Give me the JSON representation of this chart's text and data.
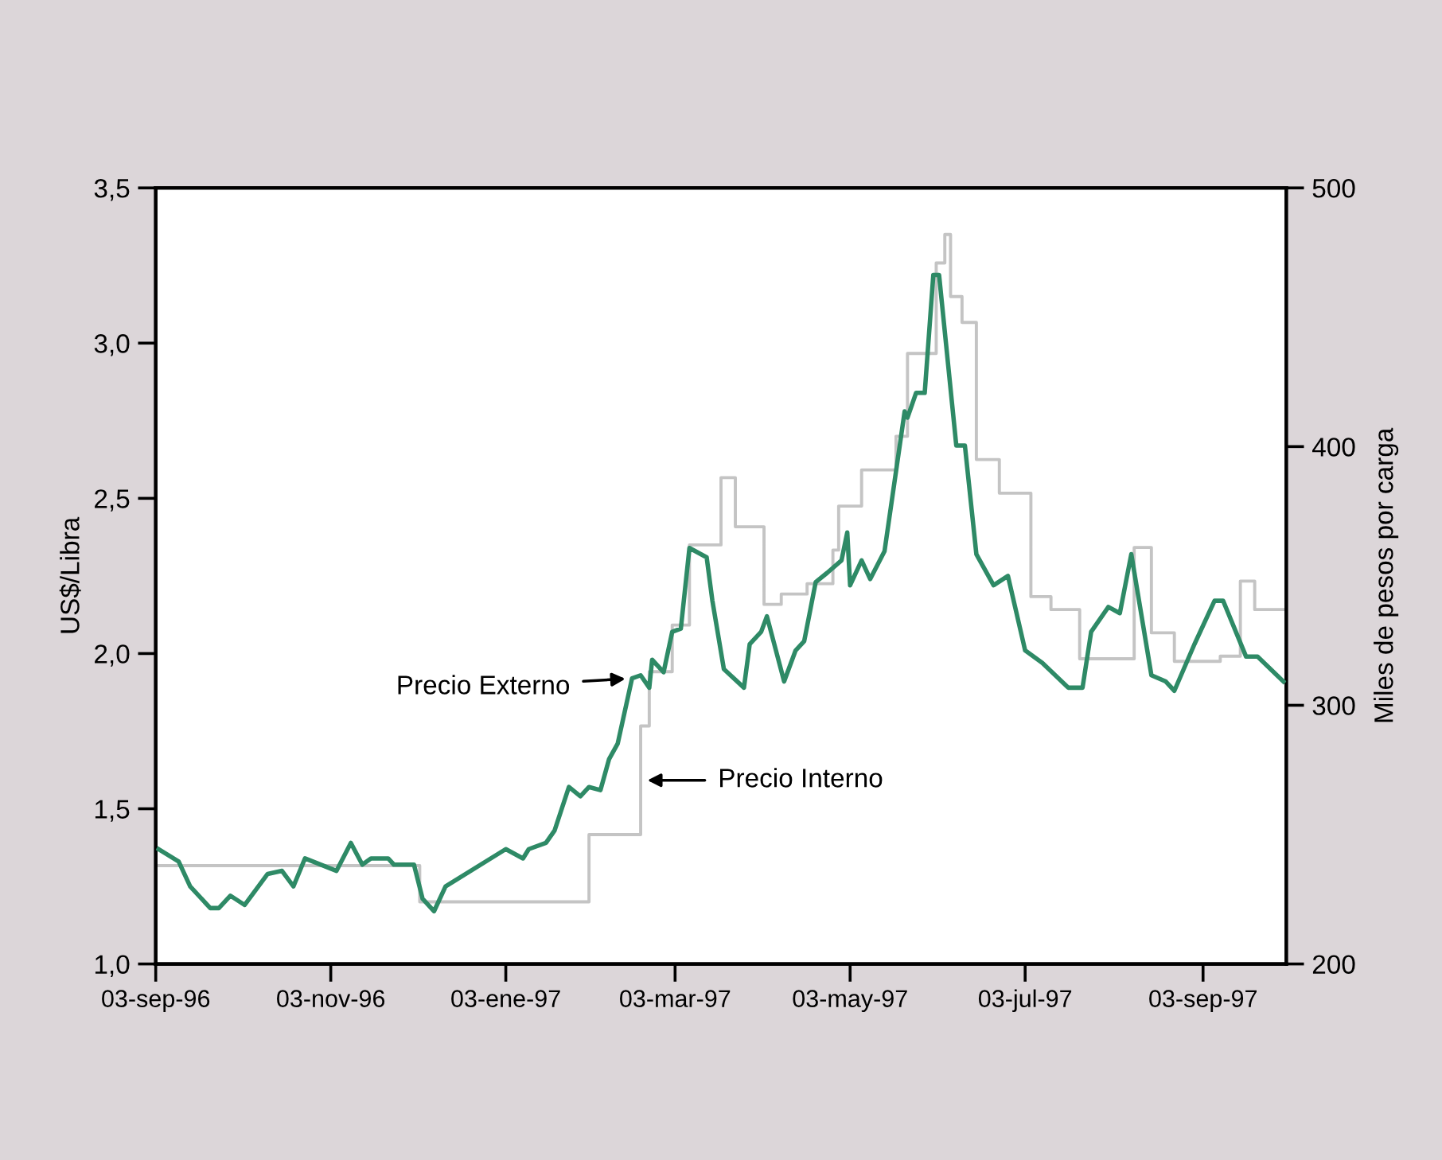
{
  "chart_data": {
    "type": "line",
    "ylabel": "US$/Libra",
    "y2label": "Miles de pesos por carga",
    "xlim": [
      "1996-09-03",
      "1997-10-02"
    ],
    "xticks": [
      {
        "value": "1996-09-03",
        "label": "03-sep-96"
      },
      {
        "value": "1996-11-03",
        "label": "03-nov-96"
      },
      {
        "value": "1997-01-03",
        "label": "03-ene-97"
      },
      {
        "value": "1997-03-03",
        "label": "03-mar-97"
      },
      {
        "value": "1997-05-03",
        "label": "03-may-97"
      },
      {
        "value": "1997-07-03",
        "label": "03-jul-97"
      },
      {
        "value": "1997-09-03",
        "label": "03-sep-97"
      }
    ],
    "ylim": [
      1.0,
      3.5
    ],
    "yticks": [
      {
        "value": 1.0,
        "label": "1,0"
      },
      {
        "value": 1.5,
        "label": "1,5"
      },
      {
        "value": 2.0,
        "label": "2,0"
      },
      {
        "value": 2.5,
        "label": "2,5"
      },
      {
        "value": 3.0,
        "label": "3,0"
      },
      {
        "value": 3.5,
        "label": "3,5"
      }
    ],
    "y2lim": [
      200,
      500
    ],
    "y2ticks": [
      200,
      300,
      400,
      500
    ],
    "grid": false,
    "legend": false,
    "series": [
      {
        "name": "Precio Externo",
        "axis": "y",
        "color": "#2e8a66",
        "x": [
          "1996-09-04",
          "1996-09-11",
          "1996-09-15",
          "1996-09-22",
          "1996-09-25",
          "1996-09-29",
          "1996-10-04",
          "1996-10-12",
          "1996-10-17",
          "1996-10-21",
          "1996-10-25",
          "1996-11-05",
          "1996-11-10",
          "1996-11-14",
          "1996-11-17",
          "1996-11-23",
          "1996-11-25",
          "1996-12-02",
          "1996-12-05",
          "1996-12-09",
          "1996-12-13",
          "1997-01-03",
          "1997-01-09",
          "1997-01-11",
          "1997-01-17",
          "1997-01-20",
          "1997-01-25",
          "1997-01-29",
          "1997-02-01",
          "1997-02-05",
          "1997-02-08",
          "1997-02-11",
          "1997-02-16",
          "1997-02-19",
          "1997-02-22",
          "1997-02-23",
          "1997-02-27",
          "1997-03-02",
          "1997-03-05",
          "1997-03-08",
          "1997-03-14",
          "1997-03-16",
          "1997-03-20",
          "1997-03-27",
          "1997-03-29",
          "1997-04-02",
          "1997-04-04",
          "1997-04-10",
          "1997-04-14",
          "1997-04-17",
          "1997-04-21",
          "1997-04-25",
          "1997-04-30",
          "1997-05-02",
          "1997-05-03",
          "1997-05-07",
          "1997-05-10",
          "1997-05-15",
          "1997-05-22",
          "1997-05-23",
          "1997-05-26",
          "1997-05-29",
          "1997-06-01",
          "1997-06-03",
          "1997-06-09",
          "1997-06-12",
          "1997-06-16",
          "1997-06-22",
          "1997-06-27",
          "1997-07-03",
          "1997-07-09",
          "1997-07-18",
          "1997-07-23",
          "1997-07-26",
          "1997-08-01",
          "1997-08-05",
          "1997-08-09",
          "1997-08-16",
          "1997-08-21",
          "1997-08-24",
          "1997-08-31",
          "1997-09-07",
          "1997-09-10",
          "1997-09-18",
          "1997-09-22",
          "1997-10-01"
        ],
        "values": [
          1.37,
          1.33,
          1.25,
          1.18,
          1.18,
          1.22,
          1.19,
          1.29,
          1.3,
          1.25,
          1.34,
          1.3,
          1.39,
          1.32,
          1.34,
          1.34,
          1.32,
          1.32,
          1.21,
          1.17,
          1.25,
          1.37,
          1.34,
          1.37,
          1.39,
          1.43,
          1.57,
          1.54,
          1.57,
          1.56,
          1.66,
          1.71,
          1.92,
          1.93,
          1.89,
          1.98,
          1.94,
          2.07,
          2.08,
          2.34,
          2.31,
          2.17,
          1.95,
          1.89,
          2.03,
          2.07,
          2.12,
          1.91,
          2.01,
          2.04,
          2.23,
          2.26,
          2.3,
          2.39,
          2.22,
          2.3,
          2.24,
          2.33,
          2.78,
          2.76,
          2.84,
          2.84,
          3.22,
          3.22,
          2.67,
          2.67,
          2.32,
          2.22,
          2.25,
          2.01,
          1.97,
          1.89,
          1.89,
          2.07,
          2.15,
          2.13,
          2.32,
          1.93,
          1.91,
          1.88,
          2.03,
          2.17,
          2.17,
          1.99,
          1.99,
          1.91
        ]
      },
      {
        "name": "Precio Interno",
        "type": "step",
        "axis": "y2",
        "color": "#c4c4c4",
        "x": [
          "1996-09-04",
          "1996-12-04",
          "1997-02-01",
          "1997-02-19",
          "1997-02-22",
          "1997-03-02",
          "1997-03-08",
          "1997-03-19",
          "1997-03-24",
          "1997-04-03",
          "1997-04-09",
          "1997-04-18",
          "1997-04-27",
          "1997-04-29",
          "1997-05-07",
          "1997-05-19",
          "1997-05-23",
          "1997-06-02",
          "1997-06-05",
          "1997-06-07",
          "1997-06-11",
          "1997-06-16",
          "1997-06-24",
          "1997-07-05",
          "1997-07-12",
          "1997-07-22",
          "1997-08-10",
          "1997-08-16",
          "1997-08-24",
          "1997-09-09",
          "1997-09-16",
          "1997-09-21",
          "1997-09-28",
          "1997-10-02"
        ],
        "values": [
          238,
          224,
          250,
          292,
          313,
          331,
          362,
          388,
          369,
          339,
          343,
          347,
          360,
          377,
          391,
          404,
          436,
          471,
          482,
          458,
          448,
          395,
          382,
          342,
          337,
          318,
          361,
          328,
          317,
          319,
          348,
          337,
          337,
          329
        ]
      }
    ]
  }
}
